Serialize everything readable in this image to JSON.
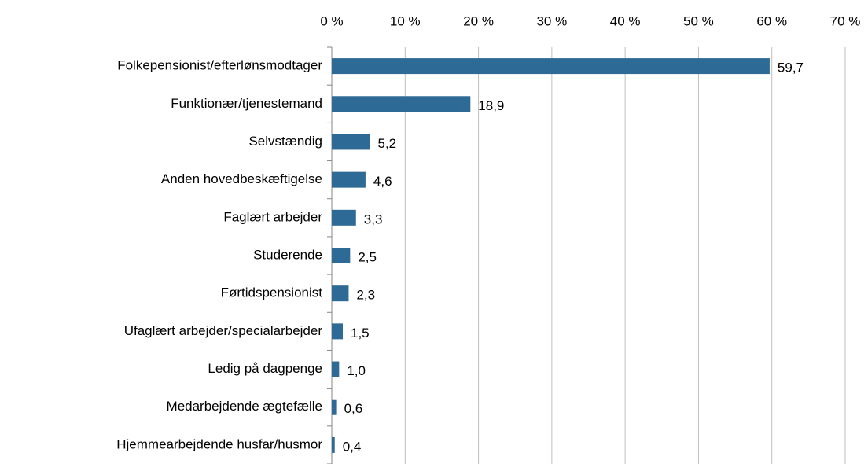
{
  "chart_data": {
    "type": "bar",
    "orientation": "horizontal",
    "categories": [
      "Folkepensionist/efterlønsmodtager",
      "Funktionær/tjenestemand",
      "Selvstændig",
      "Anden hovedbeskæftigelse",
      "Faglært arbejder",
      "Studerende",
      "Førtidspensionist",
      "Ufaglært arbejder/specialarbejder",
      "Ledig på dagpenge",
      "Medarbejdende ægtefælle",
      "Hjemmearbejdende husfar/husmor"
    ],
    "values": [
      59.7,
      18.9,
      5.2,
      4.6,
      3.3,
      2.5,
      2.3,
      1.5,
      1.0,
      0.6,
      0.4
    ],
    "value_labels": [
      "59,7",
      "18,9",
      "5,2",
      "4,6",
      "3,3",
      "2,5",
      "2,3",
      "1,5",
      "1,0",
      "0,6",
      "0,4"
    ],
    "color": "#2e6a96",
    "xlim": [
      0,
      70
    ],
    "xticks": [
      {
        "value": 0,
        "label": "0 %"
      },
      {
        "value": 10,
        "label": "10 %"
      },
      {
        "value": 20,
        "label": "20 %"
      },
      {
        "value": 30,
        "label": "30 %"
      },
      {
        "value": 40,
        "label": "40 %"
      },
      {
        "value": 50,
        "label": "50 %"
      },
      {
        "value": 60,
        "label": "60 %"
      },
      {
        "value": 70,
        "label": "70 %"
      }
    ],
    "grid": true
  }
}
